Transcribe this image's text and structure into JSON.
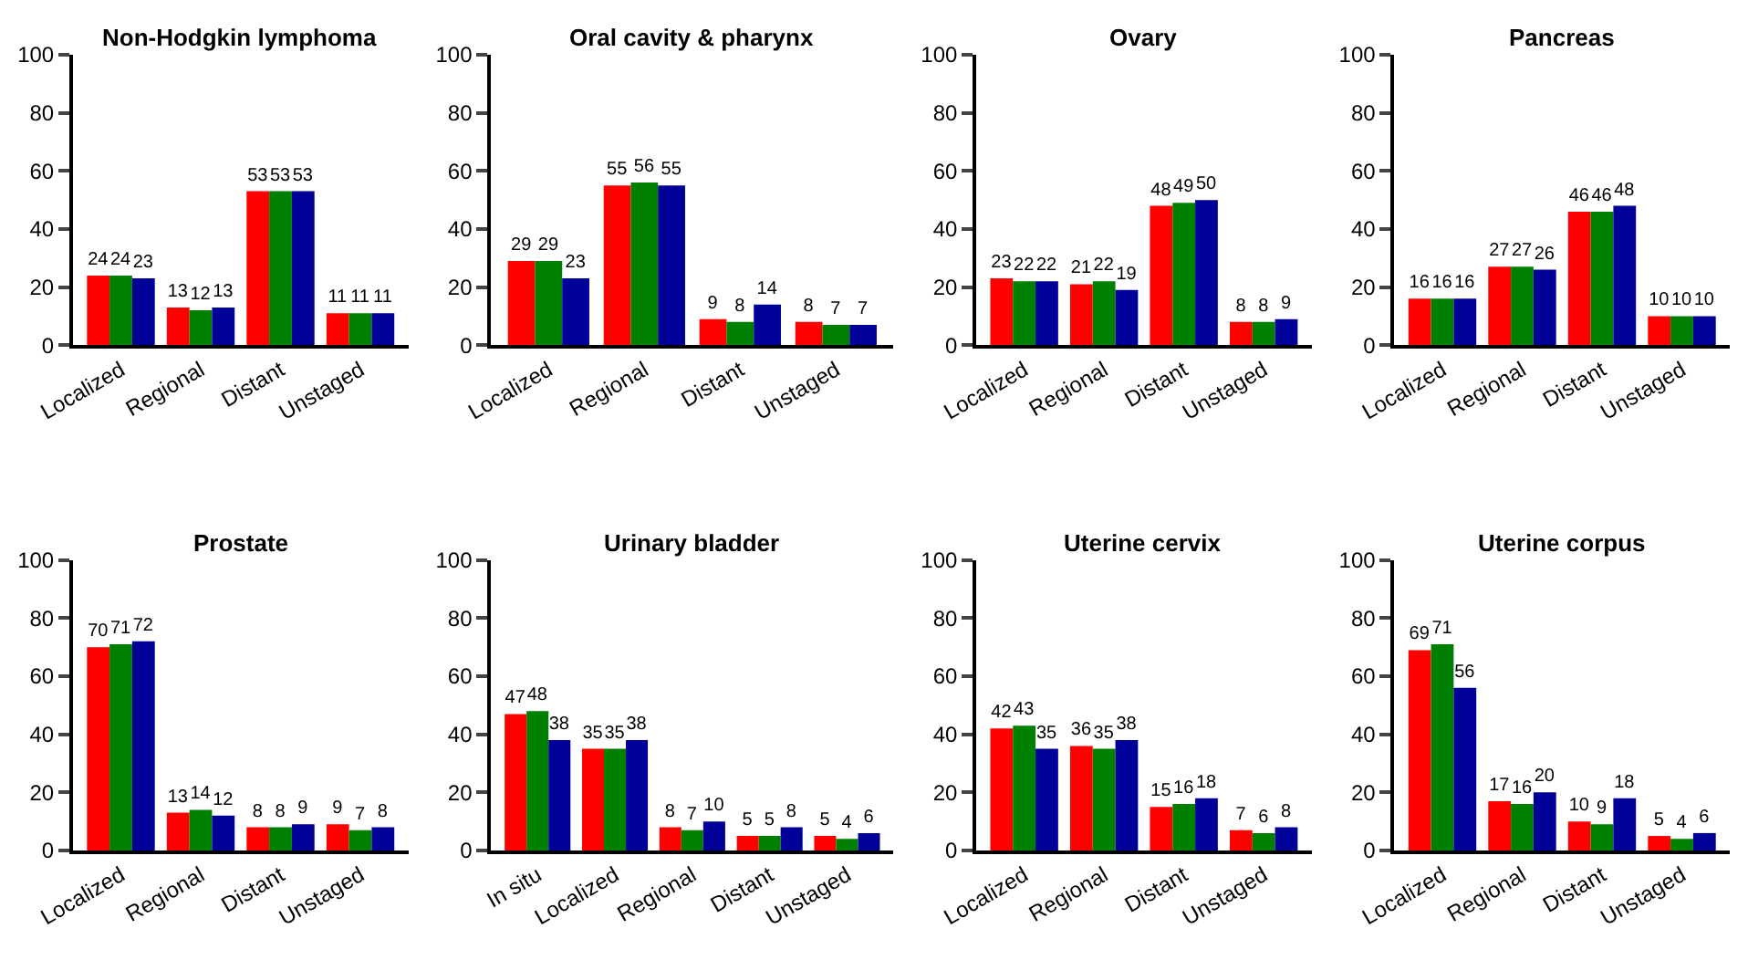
{
  "chart_data": [
    {
      "type": "bar",
      "title": "Non-Hodgkin lymphoma",
      "categories": [
        "Localized",
        "Regional",
        "Distant",
        "Unstaged"
      ],
      "series": [
        {
          "color": "#ff0000",
          "values": [
            24,
            13,
            53,
            11
          ]
        },
        {
          "color": "#008000",
          "values": [
            24,
            12,
            53,
            11
          ]
        },
        {
          "color": "#000099",
          "values": [
            23,
            13,
            53,
            11
          ]
        }
      ],
      "ylim": [
        0,
        100
      ],
      "yticks": [
        0,
        20,
        40,
        60,
        80,
        100
      ],
      "data_labels": true
    },
    {
      "type": "bar",
      "title": "Oral cavity & pharynx",
      "categories": [
        "Localized",
        "Regional",
        "Distant",
        "Unstaged"
      ],
      "series": [
        {
          "color": "#ff0000",
          "values": [
            29,
            55,
            9,
            8
          ]
        },
        {
          "color": "#008000",
          "values": [
            29,
            56,
            8,
            7
          ]
        },
        {
          "color": "#000099",
          "values": [
            23,
            55,
            14,
            7
          ]
        }
      ],
      "ylim": [
        0,
        100
      ],
      "yticks": [
        0,
        20,
        40,
        60,
        80,
        100
      ],
      "data_labels": true
    },
    {
      "type": "bar",
      "title": "Ovary",
      "categories": [
        "Localized",
        "Regional",
        "Distant",
        "Unstaged"
      ],
      "series": [
        {
          "color": "#ff0000",
          "values": [
            23,
            21,
            48,
            8
          ]
        },
        {
          "color": "#008000",
          "values": [
            22,
            22,
            49,
            8
          ]
        },
        {
          "color": "#000099",
          "values": [
            22,
            19,
            50,
            9
          ]
        }
      ],
      "ylim": [
        0,
        100
      ],
      "yticks": [
        0,
        20,
        40,
        60,
        80,
        100
      ],
      "data_labels": true
    },
    {
      "type": "bar",
      "title": "Pancreas",
      "categories": [
        "Localized",
        "Regional",
        "Distant",
        "Unstaged"
      ],
      "series": [
        {
          "color": "#ff0000",
          "values": [
            16,
            27,
            46,
            10
          ]
        },
        {
          "color": "#008000",
          "values": [
            16,
            27,
            46,
            10
          ]
        },
        {
          "color": "#000099",
          "values": [
            16,
            26,
            48,
            10
          ]
        }
      ],
      "ylim": [
        0,
        100
      ],
      "yticks": [
        0,
        20,
        40,
        60,
        80,
        100
      ],
      "data_labels": true
    },
    {
      "type": "bar",
      "title": "Prostate",
      "categories": [
        "Localized",
        "Regional",
        "Distant",
        "Unstaged"
      ],
      "series": [
        {
          "color": "#ff0000",
          "values": [
            70,
            13,
            8,
            9
          ]
        },
        {
          "color": "#008000",
          "values": [
            71,
            14,
            8,
            7
          ]
        },
        {
          "color": "#000099",
          "values": [
            72,
            12,
            9,
            8
          ]
        }
      ],
      "ylim": [
        0,
        100
      ],
      "yticks": [
        0,
        20,
        40,
        60,
        80,
        100
      ],
      "data_labels": true
    },
    {
      "type": "bar",
      "title": "Urinary bladder",
      "categories": [
        "In situ",
        "Localized",
        "Regional",
        "Distant",
        "Unstaged"
      ],
      "series": [
        {
          "color": "#ff0000",
          "values": [
            47,
            35,
            8,
            5,
            5
          ]
        },
        {
          "color": "#008000",
          "values": [
            48,
            35,
            7,
            5,
            4
          ]
        },
        {
          "color": "#000099",
          "values": [
            38,
            38,
            10,
            8,
            6
          ]
        }
      ],
      "ylim": [
        0,
        100
      ],
      "yticks": [
        0,
        20,
        40,
        60,
        80,
        100
      ],
      "data_labels": true
    },
    {
      "type": "bar",
      "title": "Uterine cervix",
      "categories": [
        "Localized",
        "Regional",
        "Distant",
        "Unstaged"
      ],
      "series": [
        {
          "color": "#ff0000",
          "values": [
            42,
            36,
            15,
            7
          ]
        },
        {
          "color": "#008000",
          "values": [
            43,
            35,
            16,
            6
          ]
        },
        {
          "color": "#000099",
          "values": [
            35,
            38,
            18,
            8
          ]
        }
      ],
      "ylim": [
        0,
        100
      ],
      "yticks": [
        0,
        20,
        40,
        60,
        80,
        100
      ],
      "data_labels": true
    },
    {
      "type": "bar",
      "title": "Uterine corpus",
      "categories": [
        "Localized",
        "Regional",
        "Distant",
        "Unstaged"
      ],
      "series": [
        {
          "color": "#ff0000",
          "values": [
            69,
            17,
            10,
            5
          ]
        },
        {
          "color": "#008000",
          "values": [
            71,
            16,
            9,
            4
          ]
        },
        {
          "color": "#000099",
          "values": [
            56,
            20,
            18,
            6
          ]
        }
      ],
      "ylim": [
        0,
        100
      ],
      "yticks": [
        0,
        20,
        40,
        60,
        80,
        100
      ],
      "data_labels": true
    }
  ]
}
